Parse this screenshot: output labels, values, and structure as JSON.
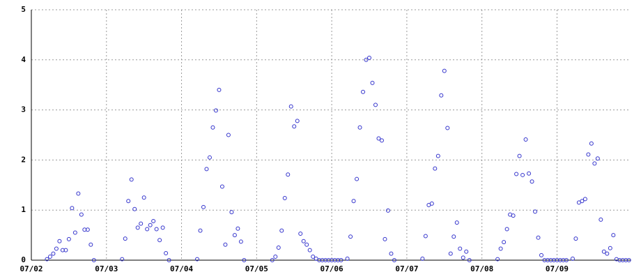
{
  "chart_data": {
    "type": "scatter",
    "x": [
      5,
      6,
      7,
      8,
      9,
      10,
      11,
      12,
      13,
      14,
      15,
      16,
      17,
      18,
      19,
      20,
      29,
      30,
      31,
      32,
      33,
      34,
      35,
      36,
      37,
      38,
      39,
      40,
      41,
      42,
      43,
      44,
      53,
      54,
      55,
      56,
      57,
      58,
      59,
      60,
      61,
      62,
      63,
      64,
      65,
      66,
      67,
      68,
      77,
      78,
      79,
      80,
      81,
      82,
      83,
      84,
      85,
      86,
      87,
      88,
      89,
      90,
      91,
      92,
      93,
      94,
      95,
      96,
      97,
      98,
      99,
      101,
      102,
      103,
      104,
      105,
      106,
      107,
      108,
      109,
      110,
      111,
      112,
      113,
      114,
      115,
      116,
      125,
      126,
      127,
      128,
      129,
      130,
      131,
      132,
      133,
      134,
      135,
      136,
      137,
      138,
      139,
      140,
      149,
      150,
      151,
      152,
      153,
      154,
      155,
      156,
      157,
      158,
      159,
      160,
      161,
      162,
      163,
      164,
      165,
      166,
      167,
      168,
      169,
      170,
      171,
      173,
      174,
      175,
      176,
      177,
      178,
      179,
      180,
      181,
      182,
      183,
      184,
      185,
      186,
      187,
      188,
      189,
      190,
      191
    ],
    "values": [
      0.02,
      0.07,
      0.13,
      0.23,
      0.38,
      0.2,
      0.2,
      0.42,
      1.04,
      0.55,
      1.33,
      0.91,
      0.61,
      0.61,
      0.31,
      0,
      0.02,
      0.43,
      1.18,
      1.61,
      1.02,
      0.65,
      0.73,
      1.25,
      0.62,
      0.7,
      0.78,
      0.62,
      0.4,
      0.65,
      0.14,
      0,
      0.02,
      0.59,
      1.06,
      1.82,
      2.05,
      2.65,
      2.99,
      3.4,
      1.47,
      0.31,
      2.5,
      0.96,
      0.5,
      0.63,
      0.37,
      0,
      0,
      0.07,
      0.25,
      0.59,
      1.24,
      1.71,
      3.07,
      2.67,
      2.78,
      0.53,
      0.38,
      0.31,
      0.2,
      0.07,
      0.03,
      0,
      0,
      0,
      0,
      0,
      0,
      0,
      0,
      0.03,
      0.47,
      1.18,
      1.62,
      2.65,
      3.36,
      4.0,
      4.04,
      3.54,
      3.1,
      2.43,
      2.39,
      0.42,
      0.99,
      0.13,
      0,
      0.03,
      0.48,
      1.1,
      1.13,
      1.83,
      2.08,
      3.29,
      3.78,
      2.64,
      0.13,
      0.47,
      0.75,
      0.23,
      0.05,
      0.17,
      0,
      0.02,
      0.23,
      0.36,
      0.62,
      0.91,
      0.89,
      1.72,
      2.08,
      1.7,
      2.41,
      1.73,
      1.57,
      0.97,
      0.45,
      0.1,
      0,
      0,
      0,
      0,
      0,
      0,
      0,
      0,
      0.03,
      0.43,
      1.15,
      1.18,
      1.22,
      2.11,
      2.33,
      1.93,
      2.03,
      0.81,
      0.17,
      0.13,
      0.24,
      0.5,
      0.02,
      0,
      0,
      0,
      0
    ],
    "color": "#3333cc",
    "xlim": [
      0,
      191.5
    ],
    "xticks": [
      {
        "value": 0,
        "label": "07/02"
      },
      {
        "value": 24,
        "label": "07/03"
      },
      {
        "value": 48,
        "label": "07/04"
      },
      {
        "value": 72,
        "label": "07/05"
      },
      {
        "value": 96,
        "label": "07/06"
      },
      {
        "value": 120,
        "label": "07/07"
      },
      {
        "value": 144,
        "label": "07/08"
      },
      {
        "value": 168,
        "label": "07/09"
      }
    ],
    "ylim": [
      0,
      5
    ],
    "yticks": [
      0,
      1,
      2,
      3,
      4,
      5
    ],
    "grid": true
  }
}
